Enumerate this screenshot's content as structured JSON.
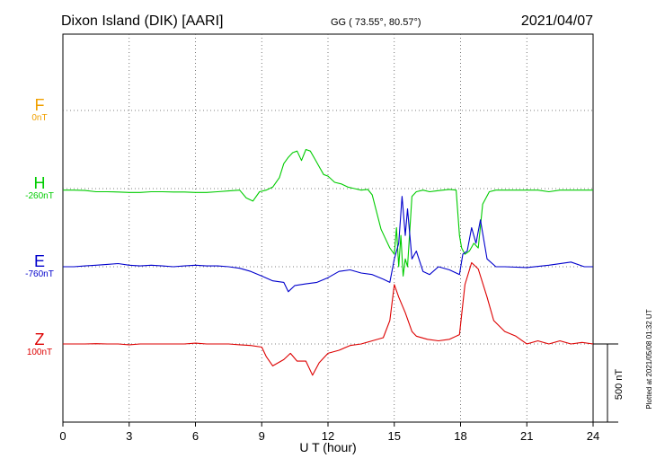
{
  "header": {
    "station": "Dixon Island (DIK)  [AARI]",
    "coords": "GG ( 73.55°,  80.57°)",
    "date": "2021/04/07"
  },
  "components": [
    {
      "letter": "F",
      "offset": "0nT",
      "color": "#f0a000"
    },
    {
      "letter": "H",
      "offset": "-260nT",
      "color": "#00cc00"
    },
    {
      "letter": "E",
      "offset": "-760nT",
      "color": "#0000cc"
    },
    {
      "letter": "Z",
      "offset": "100nT",
      "color": "#dd0000"
    }
  ],
  "scale_label": "500 nT",
  "plotted_note": "Plotted at 2021/05/08 01:32 UT",
  "chart_data": {
    "type": "line",
    "xlabel": "U T (hour)",
    "xlim": [
      0,
      24
    ],
    "x_ticks": [
      0,
      3,
      6,
      9,
      12,
      15,
      18,
      21,
      24
    ],
    "grid": true,
    "series": [
      {
        "name": "H",
        "color": "#00cc00",
        "x": [
          0,
          0.5,
          1,
          1.5,
          2,
          2.5,
          3,
          3.5,
          4,
          4.5,
          5,
          5.5,
          6,
          6.5,
          7,
          7.5,
          8,
          8.3,
          8.6,
          8.9,
          9.2,
          9.5,
          9.8,
          10,
          10.2,
          10.4,
          10.6,
          10.8,
          11,
          11.2,
          11.4,
          11.6,
          11.8,
          12,
          12.3,
          12.6,
          12.9,
          13.2,
          13.5,
          13.8,
          14,
          14.2,
          14.4,
          14.6,
          14.8,
          15,
          15.1,
          15.2,
          15.3,
          15.4,
          15.5,
          15.6,
          15.8,
          16,
          16.3,
          16.6,
          16.9,
          17.2,
          17.5,
          17.8,
          17.95,
          18.05,
          18.2,
          18.4,
          18.6,
          18.8,
          19,
          19.3,
          19.6,
          20,
          20.5,
          21,
          21.5,
          22,
          22.5,
          23,
          23.5,
          24
        ],
        "values": [
          -10,
          -10,
          -12,
          -20,
          -20,
          -22,
          -25,
          -25,
          -20,
          -20,
          -22,
          -22,
          -25,
          -25,
          -20,
          -15,
          -10,
          -60,
          -80,
          -20,
          -10,
          10,
          70,
          160,
          200,
          230,
          240,
          180,
          250,
          240,
          190,
          140,
          90,
          80,
          40,
          30,
          10,
          0,
          -10,
          -5,
          -40,
          -150,
          -260,
          -320,
          -380,
          -420,
          -250,
          -500,
          -300,
          -560,
          -450,
          -500,
          -50,
          -20,
          -10,
          -20,
          -15,
          -10,
          -5,
          -10,
          -300,
          -380,
          -420,
          -400,
          -350,
          -380,
          -100,
          -20,
          -10,
          -10,
          -10,
          -10,
          -10,
          -20,
          -10,
          -10,
          -10,
          -10
        ]
      },
      {
        "name": "E",
        "color": "#0000cc",
        "x": [
          0,
          0.5,
          1,
          1.5,
          2,
          2.5,
          3,
          3.5,
          4,
          4.5,
          5,
          5.5,
          6,
          6.5,
          7,
          7.5,
          8,
          8.5,
          9,
          9.5,
          10,
          10.2,
          10.5,
          11,
          11.5,
          12,
          12.5,
          13,
          13.5,
          14,
          14.5,
          14.8,
          15,
          15.2,
          15.35,
          15.5,
          15.6,
          15.8,
          16,
          16.3,
          16.6,
          17,
          17.5,
          17.95,
          18.1,
          18.3,
          18.5,
          18.7,
          18.9,
          19.2,
          19.6,
          20,
          21,
          22,
          23,
          23.6,
          24
        ],
        "values": [
          0,
          0,
          5,
          10,
          15,
          20,
          10,
          5,
          10,
          5,
          0,
          5,
          10,
          5,
          5,
          0,
          -10,
          -30,
          -60,
          -90,
          -100,
          -160,
          -120,
          -110,
          -100,
          -70,
          -30,
          -20,
          -40,
          -50,
          -80,
          -100,
          50,
          150,
          450,
          200,
          370,
          50,
          100,
          -30,
          -50,
          0,
          -20,
          -50,
          80,
          100,
          250,
          150,
          300,
          50,
          0,
          0,
          -5,
          10,
          30,
          0,
          0
        ]
      },
      {
        "name": "Z",
        "color": "#dd0000",
        "x": [
          0,
          0.5,
          1,
          1.5,
          2,
          2.5,
          3,
          3.5,
          4,
          4.5,
          5,
          5.5,
          6,
          6.5,
          7,
          7.5,
          8,
          8.5,
          9,
          9.2,
          9.5,
          10,
          10.3,
          10.6,
          11,
          11.3,
          11.6,
          12,
          12.5,
          13,
          13.5,
          14,
          14.5,
          14.8,
          15,
          15.2,
          15.5,
          15.8,
          16,
          16.5,
          17,
          17.5,
          17.95,
          18.2,
          18.5,
          18.8,
          19.2,
          19.5,
          20,
          20.5,
          21,
          21.5,
          22,
          22.5,
          23,
          23.5,
          24
        ],
        "values": [
          0,
          0,
          0,
          2,
          0,
          0,
          -5,
          0,
          0,
          0,
          0,
          0,
          5,
          0,
          0,
          0,
          -5,
          -10,
          -20,
          -80,
          -140,
          -100,
          -60,
          -110,
          -110,
          -200,
          -120,
          -60,
          -40,
          -10,
          0,
          20,
          40,
          150,
          380,
          300,
          200,
          80,
          50,
          30,
          20,
          30,
          60,
          380,
          520,
          480,
          300,
          150,
          80,
          50,
          0,
          20,
          0,
          20,
          0,
          10,
          0
        ]
      }
    ]
  }
}
